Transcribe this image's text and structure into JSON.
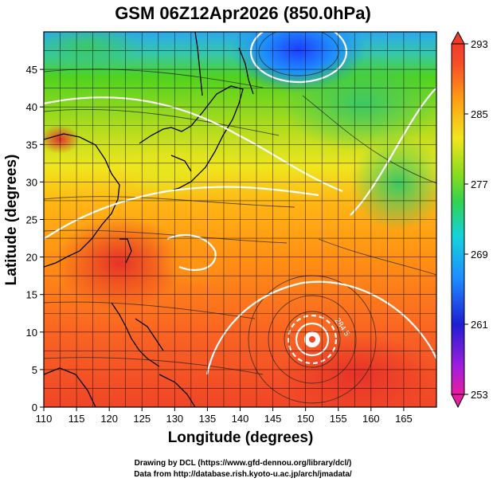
{
  "title": "GSM 06Z12Apr2026 (850.0hPa)",
  "xlabel": "Longitude (degrees)",
  "ylabel": "Latitude  (degrees)",
  "x_ticks": [
    "110",
    "115",
    "120",
    "125",
    "130",
    "135",
    "140",
    "145",
    "150",
    "155",
    "160",
    "165"
  ],
  "y_ticks": [
    "0",
    "5",
    "10",
    "15",
    "20",
    "25",
    "30",
    "35",
    "40",
    "45"
  ],
  "colorbar_ticks": [
    "253",
    "261",
    "269",
    "277",
    "285",
    "293"
  ],
  "contour_label": "284.5",
  "credit_line1": "Drawing by DCL (https://www.gfd-dennou.org/library/dcl/)",
  "credit_line2": "Data from http://database.rish.kyoto-u.ac.jp/arch/jmadata/",
  "map": {
    "lon_range": [
      110,
      170
    ],
    "lat_range": [
      0,
      50
    ],
    "grid_step_deg": 2.5,
    "variable_range": [
      253,
      293
    ],
    "colors": {
      "cold": "#1e3cff",
      "cool": "#00c8e6",
      "mild": "#50d21e",
      "warm_yellow": "#f0e61e",
      "warm_orange": "#ffa014",
      "hot": "#f03c28",
      "coast": "#000000",
      "contour": "#ffffff"
    }
  }
}
